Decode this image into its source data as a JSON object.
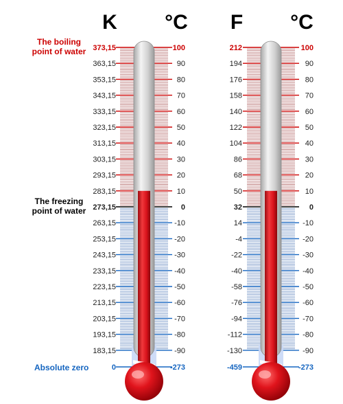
{
  "headers": {
    "left_scale_left": "K",
    "left_scale_right": "°C",
    "right_scale_left": "F",
    "right_scale_right": "°C"
  },
  "notes": {
    "boiling": "The boiling\npoint of water",
    "freezing": "The freezing\npoint  of water",
    "absolute_zero": "Absolute zero"
  },
  "colors": {
    "mercury_red": "#d8121b",
    "boiling_red": "#cc0000",
    "freezing_black": "#000000",
    "cold_blue": "#1565c0",
    "tube_grey": "#d9d9d9"
  },
  "fill_level_celsius": 10,
  "celsius_labels": [
    "100",
    "90",
    "80",
    "70",
    "60",
    "50",
    "40",
    "30",
    "20",
    "10",
    "0",
    "-10",
    "-20",
    "-30",
    "-40",
    "-50",
    "-60",
    "-70",
    "-80",
    "-90"
  ],
  "celsius_absolute_zero": "-273",
  "kelvin_labels": [
    "373,15",
    "363,15",
    "353,15",
    "343,15",
    "333,15",
    "323,15",
    "313,15",
    "303,15",
    "293,15",
    "283,15",
    "273,15",
    "263,15",
    "253,15",
    "243,15",
    "233,15",
    "223,15",
    "213,15",
    "203,15",
    "193,15",
    "183,15"
  ],
  "kelvin_absolute_zero": "0",
  "fahrenheit_labels": [
    "212",
    "194",
    "176",
    "158",
    "140",
    "122",
    "104",
    "86",
    "68",
    "50",
    "32",
    "14",
    "-4",
    "-22",
    "-40",
    "-58",
    "-76",
    "-94",
    "-112",
    "-130"
  ],
  "fahrenheit_absolute_zero": "-459"
}
